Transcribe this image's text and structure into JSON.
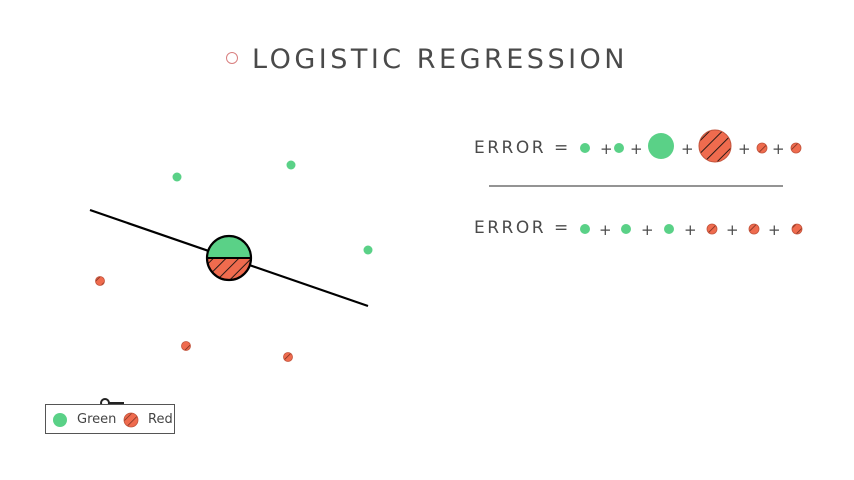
{
  "title": "LOGISTIC REGRESSION",
  "equations": {
    "first": {
      "label": "ERROR =",
      "terms": [
        "green-small",
        "green-small",
        "green-large",
        "red-large",
        "red-small",
        "red-small"
      ]
    },
    "second": {
      "label": "ERROR =",
      "terms": [
        "green-small",
        "green-small",
        "green-small",
        "red-small",
        "red-small",
        "red-small"
      ]
    },
    "plus": "+"
  },
  "legend": {
    "green": "Green",
    "red": "Red",
    "icon": "key-icon"
  },
  "colors": {
    "green": "#5ad187",
    "red": "#ef6b4e",
    "line": "#000000",
    "text": "#4a4a4a"
  },
  "points": {
    "green": 3,
    "red": 3,
    "misclassified": 1
  }
}
